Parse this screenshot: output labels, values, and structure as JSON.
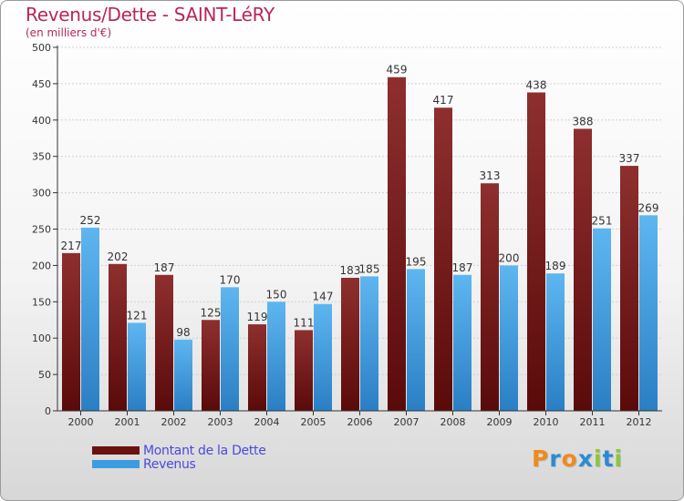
{
  "title": "Revenus/Dette - SAINT-LéRY",
  "subtitle": "(en milliers d'€)",
  "colors": {
    "title": "#b8265c",
    "dette": "#7a1d1d",
    "revenus": "#3d9be0",
    "axis": "#333333",
    "grid": "#cccccc",
    "legend_text": "#4a4adc"
  },
  "brand": {
    "letters": [
      "P",
      "r",
      "o",
      "x",
      "i",
      "t",
      "i"
    ],
    "colors": [
      "#f08a1c",
      "#2a8ad6",
      "#f08a1c",
      "#2a8ad6",
      "#8cc63e",
      "#2a8ad6",
      "#8cc63e"
    ]
  },
  "chart_data": {
    "type": "bar",
    "categories": [
      "2000",
      "2001",
      "2002",
      "2003",
      "2004",
      "2005",
      "2006",
      "2007",
      "2008",
      "2009",
      "2010",
      "2011",
      "2012"
    ],
    "series": [
      {
        "name": "Montant de la Dette",
        "color": "#7a1d1d",
        "values": [
          217,
          202,
          187,
          125,
          119,
          111,
          183,
          459,
          417,
          313,
          438,
          388,
          337
        ]
      },
      {
        "name": "Revenus",
        "color": "#3d9be0",
        "values": [
          252,
          121,
          98,
          170,
          150,
          147,
          185,
          195,
          187,
          200,
          189,
          251,
          269
        ]
      }
    ],
    "yticks": [
      "0",
      "50",
      "100",
      "150",
      "200",
      "250",
      "300",
      "350",
      "400",
      "450",
      "500"
    ],
    "ylim": [
      0,
      500
    ],
    "grid": true,
    "legend_position": "bottom-left"
  }
}
